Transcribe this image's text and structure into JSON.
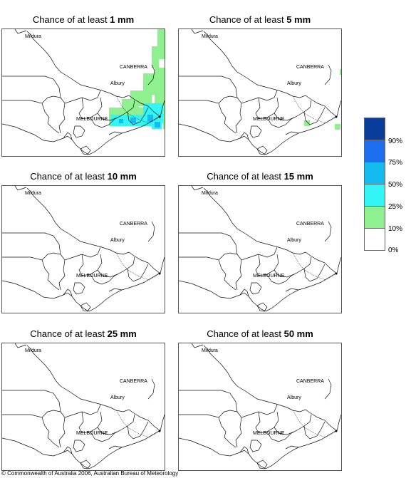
{
  "panels": [
    {
      "prefix": "Chance of at least ",
      "amount": "1 mm"
    },
    {
      "prefix": "Chance of at least ",
      "amount": "5 mm"
    },
    {
      "prefix": "Chance of at least ",
      "amount": "10 mm"
    },
    {
      "prefix": "Chance of at least ",
      "amount": "15 mm"
    },
    {
      "prefix": "Chance of at least ",
      "amount": "25 mm"
    },
    {
      "prefix": "Chance of at least ",
      "amount": "50 mm"
    }
  ],
  "places": {
    "mildura": "Mildura",
    "canberra": "CANBERRA",
    "albury": "Albury",
    "melbourne": "MELBOURNE"
  },
  "legend": {
    "labels": [
      "90%",
      "75%",
      "50%",
      "25%",
      "10%",
      "0%"
    ],
    "colors": [
      "#0a3c9c",
      "#1e6ef0",
      "#14bbf0",
      "#32f5f5",
      "#8ef08e",
      "#ffffff"
    ],
    "color_meaning": [
      "90-100%",
      "75-90%",
      "50-75%",
      "25-50%",
      "10-25%",
      "0-10%"
    ]
  },
  "copyright": "© Commonwealth of Australia 2006, Australian Bureau of Meteorology"
}
